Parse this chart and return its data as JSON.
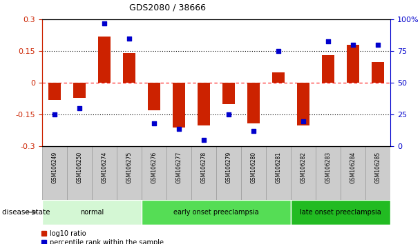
{
  "title": "GDS2080 / 38666",
  "samples": [
    "GSM106249",
    "GSM106250",
    "GSM106274",
    "GSM106275",
    "GSM106276",
    "GSM106277",
    "GSM106278",
    "GSM106279",
    "GSM106280",
    "GSM106281",
    "GSM106282",
    "GSM106283",
    "GSM106284",
    "GSM106285"
  ],
  "log10_ratio": [
    -0.08,
    -0.07,
    0.22,
    0.14,
    -0.13,
    -0.21,
    -0.2,
    -0.1,
    -0.19,
    0.05,
    -0.2,
    0.13,
    0.18,
    0.1
  ],
  "percentile_rank": [
    25,
    30,
    97,
    85,
    18,
    14,
    5,
    25,
    12,
    75,
    20,
    83,
    80,
    80
  ],
  "bar_color": "#cc2200",
  "dot_color": "#0000cc",
  "ylim_left": [
    -0.3,
    0.3
  ],
  "ylim_right": [
    0,
    100
  ],
  "yticks_left": [
    -0.3,
    -0.15,
    0,
    0.15,
    0.3
  ],
  "ytick_labels_left": [
    "-0.3",
    "-0.15",
    "0",
    "0.15",
    "0.3"
  ],
  "yticks_right": [
    0,
    25,
    50,
    75,
    100
  ],
  "ytick_labels_right": [
    "0",
    "25",
    "50",
    "75",
    "100%"
  ],
  "hlines": [
    -0.15,
    0,
    0.15
  ],
  "hline_styles": [
    "dotted",
    "dotted_red",
    "dotted"
  ],
  "hline_colors": [
    "black",
    "red",
    "black"
  ],
  "groups": [
    {
      "label": "normal",
      "start": 0,
      "end": 3,
      "color": "#d4f7d4"
    },
    {
      "label": "early onset preeclampsia",
      "start": 4,
      "end": 9,
      "color": "#55dd55"
    },
    {
      "label": "late onset preeclampsia",
      "start": 10,
      "end": 13,
      "color": "#22bb22"
    }
  ],
  "disease_state_label": "disease state",
  "legend_items": [
    {
      "label": "log10 ratio",
      "color": "#cc2200"
    },
    {
      "label": "percentile rank within the sample",
      "color": "#0000cc"
    }
  ],
  "background_color": "#ffffff",
  "sample_label_bg": "#cccccc",
  "bar_width": 0.5
}
